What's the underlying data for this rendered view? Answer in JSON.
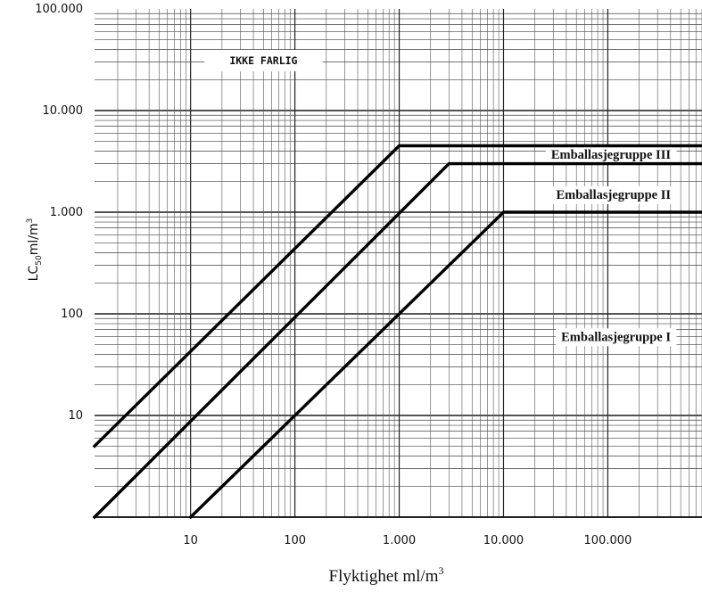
{
  "chart_data": {
    "type": "line",
    "xlabel": "Flyktighet ml/m",
    "xlabel_sup": "3",
    "ylabel_main": "LC",
    "ylabel_sub": "50",
    "ylabel_rest": "ml/m",
    "ylabel_sup": "3",
    "x_scale": "log",
    "y_scale": "log",
    "xlim": [
      1.2,
      800000
    ],
    "ylim": [
      1,
      100000
    ],
    "x_tick_labels": [
      {
        "value": 10,
        "label": "10"
      },
      {
        "value": 100,
        "label": "100"
      },
      {
        "value": 1000,
        "label": "1.000"
      },
      {
        "value": 10000,
        "label": "10.000"
      },
      {
        "value": 100000,
        "label": "100.000"
      }
    ],
    "y_tick_labels": [
      {
        "value": 10,
        "label": "10"
      },
      {
        "value": 100,
        "label": "100"
      },
      {
        "value": 1000,
        "label": "1.000"
      },
      {
        "value": 10000,
        "label": "10.000"
      },
      {
        "value": 100000,
        "label": "100.000"
      }
    ],
    "grid": true,
    "region_labels": [
      {
        "text": "IKKE FARLIG",
        "style": "safe",
        "x": 50,
        "y": 31000
      },
      {
        "text": "Emballasjegruppe III",
        "style": "group",
        "x": 50000,
        "y": 3700
      },
      {
        "text": "Emballasjegruppe II",
        "style": "group",
        "x": 50000,
        "y": 1500
      },
      {
        "text": "Emballasjegruppe I",
        "style": "group",
        "x": 50000,
        "y": 60
      }
    ],
    "series": [
      {
        "x": [
          1.2,
          1000,
          800000
        ],
        "y": [
          5,
          4500,
          4500
        ]
      },
      {
        "x": [
          1.2,
          3000,
          800000
        ],
        "y": [
          1,
          3000,
          3000
        ]
      },
      {
        "x": [
          10,
          10000,
          800000
        ],
        "y": [
          1,
          1000,
          1000
        ]
      }
    ]
  }
}
